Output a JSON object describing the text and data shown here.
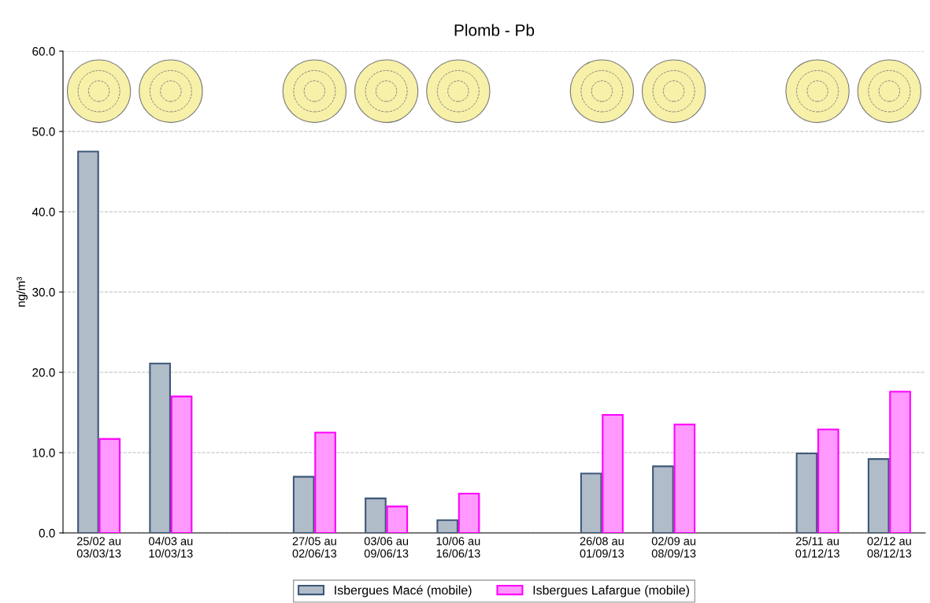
{
  "chart_data": {
    "type": "bar",
    "title": "Plomb - Pb",
    "ylabel": "ng/m³",
    "categories": [
      "25/02 au\n03/03/13",
      "04/03 au\n10/03/13",
      null,
      "27/05 au\n02/06/13",
      "03/06 au\n09/06/13",
      "10/06 au\n16/06/13",
      null,
      "26/08 au\n01/09/13",
      "02/09 au\n08/09/13",
      null,
      "25/11 au\n01/12/13",
      "02/12 au\n08/12/13"
    ],
    "series": [
      {
        "name": "Isbergues Macé (mobile)",
        "color": "#3d5878",
        "values": [
          47.5,
          21.1,
          null,
          7.0,
          4.3,
          1.6,
          null,
          7.4,
          8.3,
          null,
          9.9,
          9.2
        ]
      },
      {
        "name": "Isbergues Lafargue (mobile)",
        "color": "#ff00ff",
        "values": [
          11.7,
          17.0,
          null,
          12.5,
          3.3,
          4.9,
          null,
          14.7,
          13.5,
          null,
          12.9,
          17.6
        ]
      }
    ],
    "ylim": [
      0,
      60
    ],
    "yticks": [
      {
        "value": 0,
        "label": "0.0"
      },
      {
        "value": 10,
        "label": "10.0"
      },
      {
        "value": 20,
        "label": "20.0"
      },
      {
        "value": 30,
        "label": "30.0"
      },
      {
        "value": 40,
        "label": "40.0"
      },
      {
        "value": 50,
        "label": "50.0"
      },
      {
        "value": 60,
        "label": "60.0"
      }
    ],
    "grid": "y",
    "legend": "bottom"
  }
}
